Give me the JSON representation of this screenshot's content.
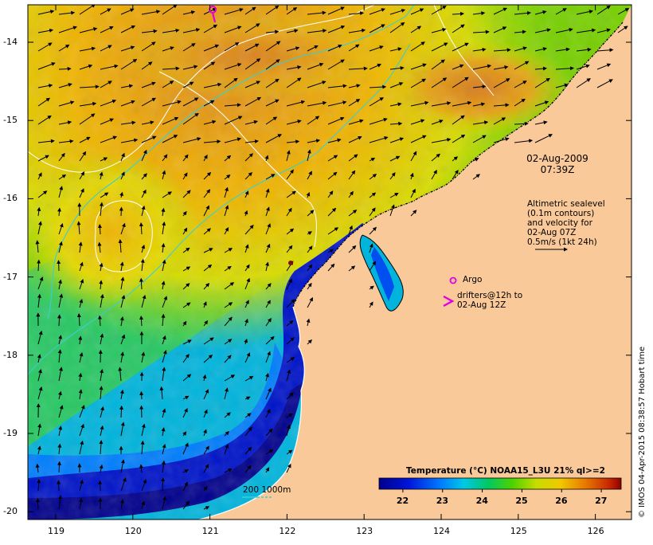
{
  "map": {
    "date_line1": "02-Aug-2009",
    "date_line2": "07:39Z",
    "y_ticks": [
      {
        "label": "-14",
        "lat": -14
      },
      {
        "label": "-15",
        "lat": -15
      },
      {
        "label": "-16",
        "lat": -16
      },
      {
        "label": "-17",
        "lat": -17
      },
      {
        "label": "-18",
        "lat": -18
      },
      {
        "label": "-19",
        "lat": -19
      },
      {
        "label": "-20",
        "lat": -20
      }
    ],
    "x_ticks": [
      {
        "label": "119",
        "lon": 119
      },
      {
        "label": "120",
        "lon": 120
      },
      {
        "label": "121",
        "lon": 121
      },
      {
        "label": "122",
        "lon": 122
      },
      {
        "label": "123",
        "lon": 123
      },
      {
        "label": "124",
        "lon": 124
      },
      {
        "label": "125",
        "lon": 125
      },
      {
        "label": "126",
        "lon": 126
      }
    ],
    "legend": {
      "altimetry_lines": [
        "Altimetric sealevel",
        "(0.1m contours)",
        "and velocity for",
        "02-Aug 07Z",
        "0.5m/s (1kt 24h)"
      ],
      "argo_label": "Argo",
      "drifters_lines": [
        "drifters@12h to",
        "02-Aug 12Z"
      ],
      "bathy_label": "200  1000m"
    },
    "colorbar": {
      "title": "Temperature (°C) NOAA15_L3U 21% ql>=2",
      "ticks": [
        {
          "label": "22",
          "value": 22
        },
        {
          "label": "23",
          "value": 23
        },
        {
          "label": "24",
          "value": 24
        },
        {
          "label": "25",
          "value": 25
        },
        {
          "label": "26",
          "value": 26
        },
        {
          "label": "27",
          "value": 27
        }
      ]
    },
    "credit": "© IMOS 04-Apr-2015 08:38:57 Hobart time",
    "colors": {
      "land": "#fac999",
      "sst_cold": "#00008c",
      "sst_mid": "#00c800",
      "sst_warm": "#e08a1e",
      "argo": "#e000e0",
      "contour": "#ffffff",
      "bathymetry": "#3ccfcf"
    }
  }
}
